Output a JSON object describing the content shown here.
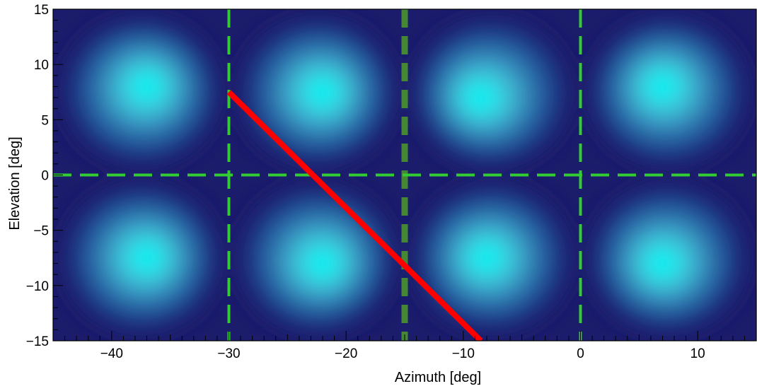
{
  "chart_data": {
    "type": "heatmap",
    "xlabel": "Azimuth [deg]",
    "ylabel": "Elevation [deg]",
    "xlim": [
      -45,
      15
    ],
    "ylim": [
      -15,
      15
    ],
    "x_ticks": [
      -40,
      -30,
      -20,
      -10,
      0,
      10
    ],
    "x_tick_labels": [
      "−40",
      "−30",
      "−20",
      "−10",
      "0",
      "10"
    ],
    "y_ticks": [
      -15,
      -10,
      -5,
      0,
      5,
      10,
      15
    ],
    "y_tick_labels": [
      "−15",
      "−10",
      "−5",
      "0",
      "5",
      "10",
      "15"
    ],
    "colormap": [
      "#1a1a6e",
      "#1e3c8c",
      "#2a6aa8",
      "#3a9cc4",
      "#3ec8dc",
      "#00f0f0"
    ],
    "background_color": "#1c1c6c",
    "beams": [
      {
        "az": -37.5,
        "el": 7.5,
        "peak_az": -37,
        "peak_el": 8
      },
      {
        "az": -22.5,
        "el": 7.5,
        "peak_az": -22,
        "peak_el": 7.5
      },
      {
        "az": -7.5,
        "el": 7.5,
        "peak_az": -8.5,
        "peak_el": 7
      },
      {
        "az": 7.5,
        "el": 7.5,
        "peak_az": 7,
        "peak_el": 8
      },
      {
        "az": -37.5,
        "el": -7.5,
        "peak_az": -37,
        "peak_el": -7.5
      },
      {
        "az": -22.5,
        "el": -7.5,
        "peak_az": -22,
        "peak_el": -8
      },
      {
        "az": -7.5,
        "el": -7.5,
        "peak_az": -8,
        "peak_el": -7.5
      },
      {
        "az": 7.5,
        "el": -7.5,
        "peak_az": 7,
        "peak_el": -8
      }
    ],
    "grid_lines_vertical": [
      -30,
      -15,
      0
    ],
    "grid_lines_horizontal": [
      0
    ],
    "grid_color": "#33cc33",
    "center_line_color": "#448833",
    "trajectory": {
      "x": [
        -30,
        -8.5
      ],
      "y": [
        7.5,
        -15
      ],
      "color": "#ff0000"
    }
  }
}
